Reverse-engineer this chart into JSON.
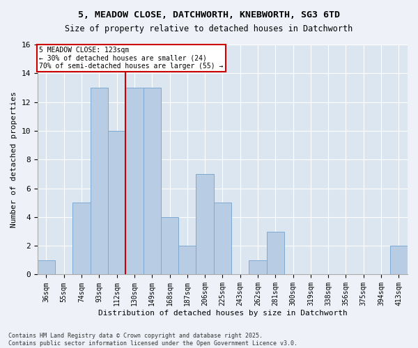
{
  "title1": "5, MEADOW CLOSE, DATCHWORTH, KNEBWORTH, SG3 6TD",
  "title2": "Size of property relative to detached houses in Datchworth",
  "xlabel": "Distribution of detached houses by size in Datchworth",
  "ylabel": "Number of detached properties",
  "categories": [
    "36sqm",
    "55sqm",
    "74sqm",
    "93sqm",
    "112sqm",
    "130sqm",
    "149sqm",
    "168sqm",
    "187sqm",
    "206sqm",
    "225sqm",
    "243sqm",
    "262sqm",
    "281sqm",
    "300sqm",
    "319sqm",
    "338sqm",
    "356sqm",
    "375sqm",
    "394sqm",
    "413sqm"
  ],
  "values": [
    1,
    0,
    5,
    13,
    10,
    13,
    13,
    4,
    2,
    7,
    5,
    0,
    1,
    3,
    0,
    0,
    0,
    0,
    0,
    0,
    2
  ],
  "bar_color": "#b8cce4",
  "bar_edgecolor": "#7da9d1",
  "vline_x": 4.5,
  "vline_color": "#cc0000",
  "annotation_text": "5 MEADOW CLOSE: 123sqm\n← 30% of detached houses are smaller (24)\n70% of semi-detached houses are larger (55) →",
  "annotation_box_color": "#ffffff",
  "annotation_box_edgecolor": "#cc0000",
  "ylim": [
    0,
    16
  ],
  "yticks": [
    0,
    2,
    4,
    6,
    8,
    10,
    12,
    14,
    16
  ],
  "fig_bg": "#eef2f8",
  "plot_bg": "#dce6f1",
  "footer1": "Contains HM Land Registry data © Crown copyright and database right 2025.",
  "footer2": "Contains public sector information licensed under the Open Government Licence v3.0."
}
